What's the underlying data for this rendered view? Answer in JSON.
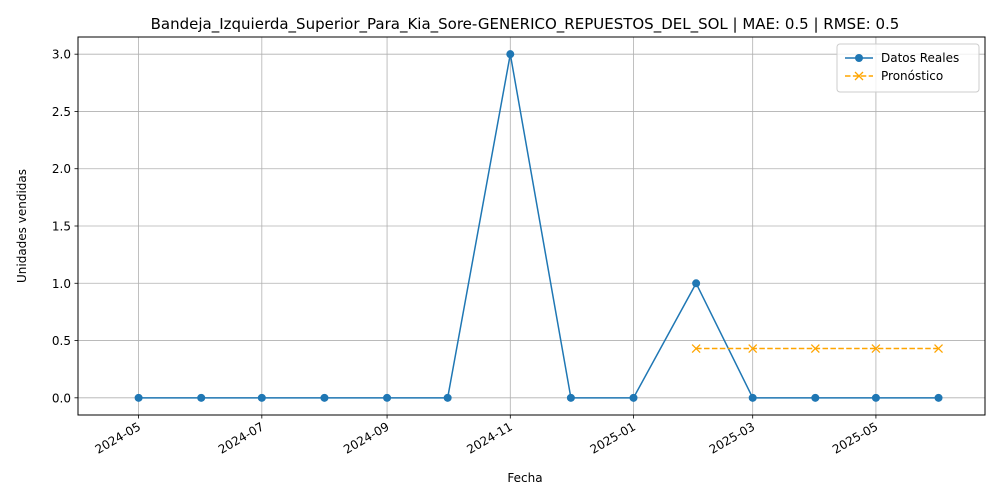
{
  "chart_data": {
    "type": "line",
    "title": "Bandeja_Izquierda_Superior_Para_Kia_Sore-GENERICO_REPUESTOS_DEL_SOL | MAE: 0.5 | RMSE: 0.5",
    "xlabel": "Fecha",
    "ylabel": "Unidades vendidas",
    "xlim": [
      "2024-04-01",
      "2025-06-24"
    ],
    "ylim": [
      -0.15,
      3.15
    ],
    "x_ticks": [
      "2024-05",
      "2024-07",
      "2024-09",
      "2024-11",
      "2025-01",
      "2025-03",
      "2025-05"
    ],
    "x_tick_dates": [
      "2024-05-01",
      "2024-07-01",
      "2024-09-01",
      "2024-11-01",
      "2025-01-01",
      "2025-03-01",
      "2025-05-01"
    ],
    "y_ticks": [
      "0.0",
      "0.5",
      "1.0",
      "1.5",
      "2.0",
      "2.5",
      "3.0"
    ],
    "y_tick_values": [
      0,
      0.5,
      1.0,
      1.5,
      2.0,
      2.5,
      3.0
    ],
    "grid": true,
    "legend_position": "top-right",
    "series": [
      {
        "name": "Datos Reales",
        "color": "#1f77b4",
        "style": "solid",
        "marker": "circle",
        "x": [
          "2024-05-01",
          "2024-06-01",
          "2024-07-01",
          "2024-08-01",
          "2024-09-01",
          "2024-10-01",
          "2024-11-01",
          "2024-12-01",
          "2025-01-01",
          "2025-02-01",
          "2025-03-01",
          "2025-04-01",
          "2025-05-01",
          "2025-06-01"
        ],
        "values": [
          0,
          0,
          0,
          0,
          0,
          0,
          3,
          0,
          0,
          1,
          0,
          0,
          0,
          0
        ]
      },
      {
        "name": "Pronóstico",
        "color": "#ffa500",
        "style": "dashed",
        "marker": "x",
        "x": [
          "2025-02-01",
          "2025-03-01",
          "2025-04-01",
          "2025-05-01",
          "2025-06-01"
        ],
        "values": [
          0.43,
          0.43,
          0.43,
          0.43,
          0.43
        ]
      }
    ]
  }
}
